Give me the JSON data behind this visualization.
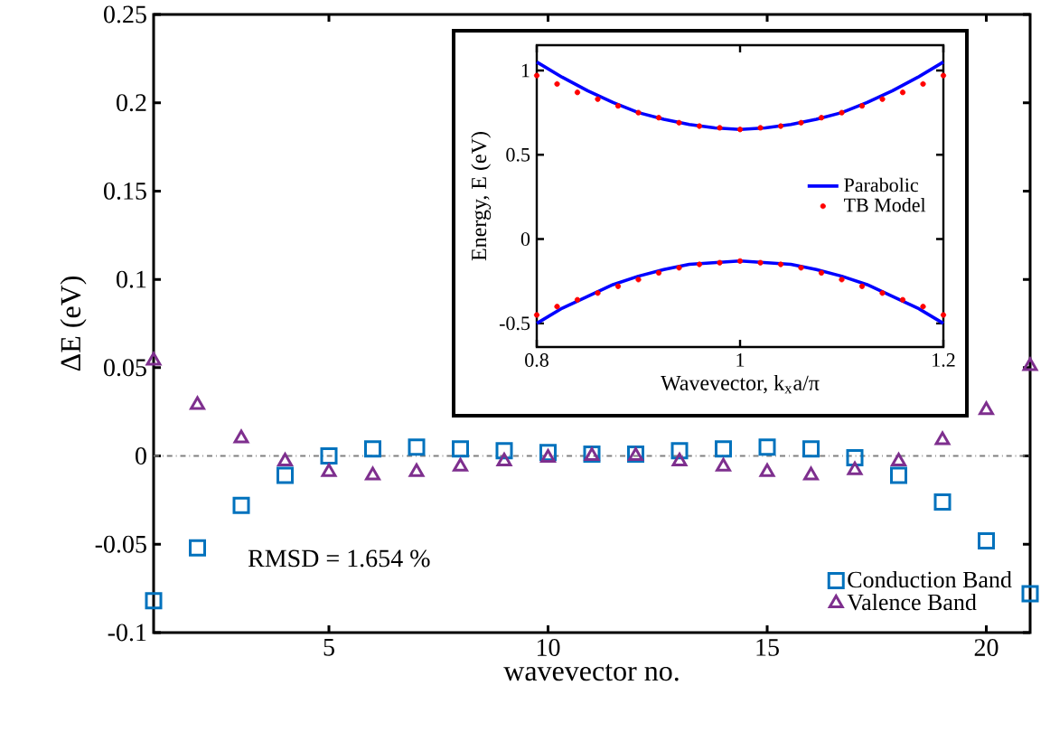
{
  "chart_data": [
    {
      "type": "scatter",
      "xlabel": "wavevector no.",
      "ylabel": "ΔE (eV)",
      "xlim": [
        1,
        21
      ],
      "xticks": [
        5,
        10,
        15,
        20
      ],
      "ylim": [
        -0.1,
        0.25
      ],
      "yticks": [
        -0.1,
        -0.05,
        0,
        0.05,
        0.1,
        0.15,
        0.2,
        0.25
      ],
      "x": [
        1,
        2,
        3,
        4,
        5,
        6,
        7,
        8,
        9,
        10,
        11,
        12,
        13,
        14,
        15,
        16,
        17,
        18,
        19,
        20,
        21
      ],
      "series": [
        {
          "name": "Conduction Band",
          "color": "#0072bd",
          "marker": "square",
          "values": [
            -0.082,
            -0.052,
            -0.028,
            -0.011,
            0.0,
            0.004,
            0.005,
            0.004,
            0.003,
            0.002,
            0.001,
            0.001,
            0.003,
            0.004,
            0.005,
            0.004,
            -0.001,
            -0.011,
            -0.026,
            -0.048,
            -0.078
          ]
        },
        {
          "name": "Valence Band",
          "color": "#7e2f8e",
          "marker": "triangle",
          "values": [
            0.054,
            0.029,
            0.01,
            -0.003,
            -0.009,
            -0.011,
            -0.009,
            -0.006,
            -0.003,
            -0.001,
            0.0,
            0.0,
            -0.003,
            -0.006,
            -0.009,
            -0.011,
            -0.008,
            -0.003,
            0.009,
            0.026,
            0.051
          ]
        }
      ],
      "ref_lines": [
        {
          "axis": "y",
          "value": 0,
          "color": "#808080",
          "line_style": "dashdot"
        }
      ],
      "annotations": [
        "RMSD = 1.654 %"
      ],
      "legend": "bottom right",
      "grid": false
    },
    {
      "type": "line",
      "xlabel": "Wavevector, k$_{x}$a/π",
      "ylabel": "Energy, E (eV)",
      "xlim": [
        0.8,
        1.2
      ],
      "xticks": [
        0.8,
        1,
        1.2
      ],
      "ylim": [
        -0.64,
        1.15
      ],
      "yticks": [
        -0.5,
        0,
        0.5,
        1
      ],
      "series": [
        {
          "name": "Parabolic",
          "type": "line",
          "color": "#0000ff",
          "marker": "none",
          "x": [
            0.8,
            0.825,
            0.85,
            0.875,
            0.9,
            0.925,
            0.95,
            0.975,
            1.0,
            1.025,
            1.05,
            1.075,
            1.1,
            1.125,
            1.15,
            1.175,
            1.2
          ],
          "values": [
            1.05,
            0.96,
            0.88,
            0.81,
            0.75,
            0.71,
            0.68,
            0.66,
            0.65,
            0.66,
            0.68,
            0.71,
            0.75,
            0.81,
            0.88,
            0.96,
            1.05
          ]
        },
        {
          "type": "line",
          "color": "#0000ff",
          "marker": "none",
          "x": [
            0.8,
            0.825,
            0.85,
            0.875,
            0.9,
            0.925,
            0.95,
            0.975,
            1.0,
            1.025,
            1.05,
            1.075,
            1.1,
            1.125,
            1.15,
            1.175,
            1.2
          ],
          "values": [
            -0.5,
            -0.41,
            -0.34,
            -0.27,
            -0.22,
            -0.18,
            -0.15,
            -0.14,
            -0.13,
            -0.14,
            -0.15,
            -0.18,
            -0.22,
            -0.27,
            -0.34,
            -0.41,
            -0.5
          ]
        },
        {
          "name": "TB Model",
          "type": "scatter",
          "color": "#ff0000",
          "marker": "circle",
          "x": [
            0.8,
            0.82,
            0.84,
            0.86,
            0.88,
            0.9,
            0.92,
            0.94,
            0.96,
            0.98,
            1.0,
            1.02,
            1.04,
            1.06,
            1.08,
            1.1,
            1.12,
            1.14,
            1.16,
            1.18,
            1.2,
            0.8,
            0.82,
            0.84,
            0.86,
            0.88,
            0.9,
            0.92,
            0.94,
            0.96,
            0.98,
            1.0,
            1.02,
            1.04,
            1.06,
            1.08,
            1.1,
            1.12,
            1.14,
            1.16,
            1.18,
            1.2
          ],
          "values": [
            0.97,
            0.92,
            0.87,
            0.83,
            0.79,
            0.75,
            0.72,
            0.69,
            0.67,
            0.66,
            0.65,
            0.66,
            0.67,
            0.69,
            0.72,
            0.75,
            0.79,
            0.83,
            0.87,
            0.92,
            0.97,
            -0.45,
            -0.4,
            -0.36,
            -0.32,
            -0.28,
            -0.24,
            -0.2,
            -0.17,
            -0.15,
            -0.14,
            -0.13,
            -0.14,
            -0.15,
            -0.17,
            -0.2,
            -0.24,
            -0.28,
            -0.32,
            -0.36,
            -0.4,
            -0.45
          ]
        }
      ],
      "legend": "right",
      "grid": false
    }
  ]
}
